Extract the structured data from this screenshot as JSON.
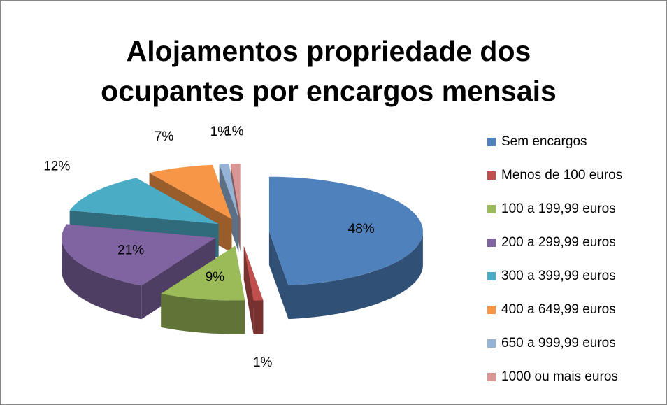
{
  "chart_data": {
    "type": "pie3d",
    "title": [
      "Alojamentos propriedade dos",
      "ocupantes por encargos mensais"
    ],
    "categories": [
      "Sem encargos",
      "Menos de 100 euros",
      "100 a 199,99 euros",
      "200 a 299,99 euros",
      "300 a 399,99 euros",
      "400 a 649,99 euros",
      "650 a 999,99 euros",
      "1000 ou mais euros"
    ],
    "values": [
      48,
      1,
      9,
      21,
      12,
      7,
      1,
      1
    ],
    "value_labels": [
      "48%",
      "1%",
      "9%",
      "21%",
      "12%",
      "7%",
      "1%",
      "1%"
    ],
    "colors": [
      "#4f81bd",
      "#c0504d",
      "#9bbb59",
      "#8064a2",
      "#4bacc6",
      "#f79646",
      "#95b3d7",
      "#d99694"
    ],
    "legend": "right"
  }
}
